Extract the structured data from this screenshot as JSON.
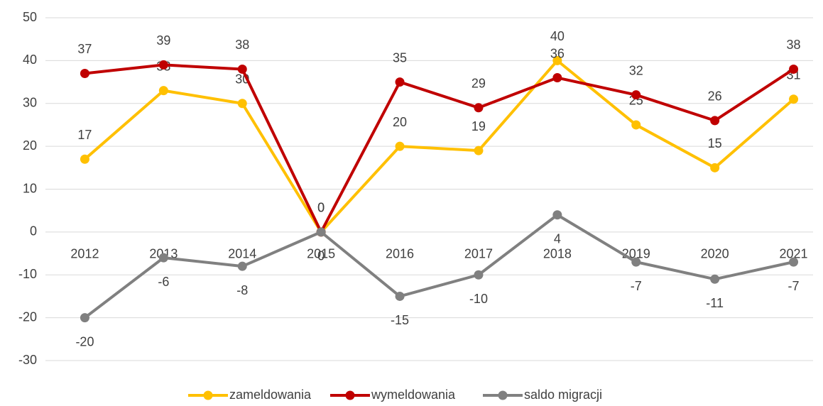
{
  "chart_data": {
    "type": "line",
    "categories": [
      "2012",
      "2013",
      "2014",
      "2015",
      "2016",
      "2017",
      "2018",
      "2019",
      "2020",
      "2021"
    ],
    "series": [
      {
        "name": "zameldowania",
        "color": "#FFC000",
        "values": [
          17,
          33,
          30,
          0,
          20,
          19,
          40,
          25,
          15,
          31
        ]
      },
      {
        "name": "wymeldowania",
        "color": "#C00000",
        "values": [
          37,
          39,
          38,
          0,
          35,
          29,
          36,
          32,
          26,
          38
        ]
      },
      {
        "name": "saldo migracji",
        "color": "#808080",
        "values": [
          -20,
          -6,
          -8,
          0,
          -15,
          -10,
          4,
          -7,
          -11,
          -7
        ]
      }
    ],
    "ylim": [
      -30,
      50
    ],
    "yticks": [
      -30,
      -20,
      -10,
      0,
      10,
      20,
      30,
      40,
      50
    ],
    "grid": true,
    "legend": "bottom"
  }
}
